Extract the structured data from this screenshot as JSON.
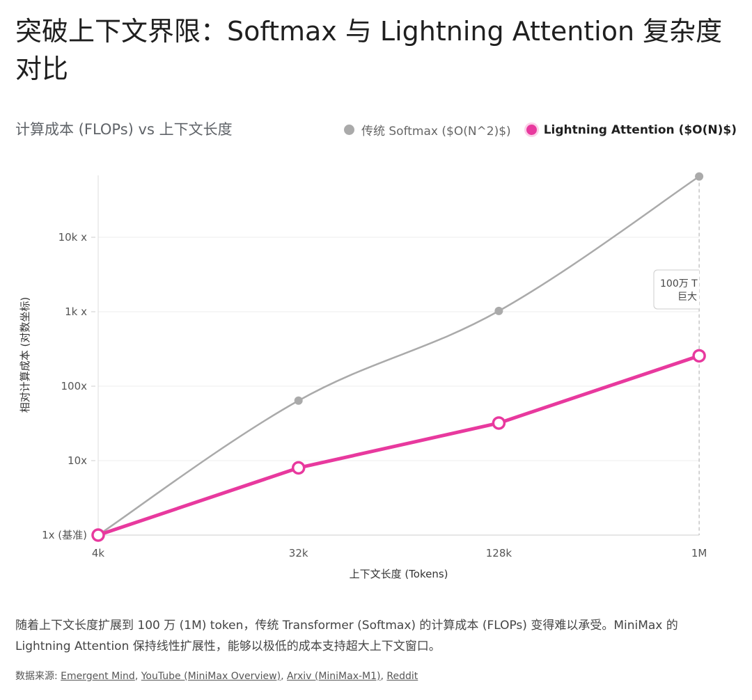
{
  "page": {
    "title": "突破上下文界限：Softmax 与 Lightning Attention 复杂度对比",
    "subtitle": "计算成本 (FLOPs) vs 上下文长度",
    "description": "随着上下文长度扩展到 100 万 (1M) token，传统 Transformer (Softmax) 的计算成本 (FLOPs) 变得难以承受。MiniMax 的 Lightning Attention 保持线性扩展性，能够以极低的成本支持超大上下文窗口。",
    "sources_label": "数据来源: ",
    "sources": [
      "Emergent Mind",
      "YouTube (MiniMax Overview)",
      "Arxiv (MiniMax-M1)",
      "Reddit"
    ]
  },
  "colors": {
    "softmax": "#aaaaaa",
    "lightning": "#e8399e",
    "grid": "#ececec"
  },
  "chart_data": {
    "type": "line",
    "title": "计算成本 (FLOPs) vs 上下文长度",
    "categories": [
      "4k",
      "32k",
      "128k",
      "1M"
    ],
    "xlabel": "上下文长度 (Tokens)",
    "ylabel": "相对计算成本 (对数坐标)",
    "yscale": "log",
    "ylim": [
      1,
      80000
    ],
    "yticks": [
      {
        "value": 1,
        "label": "1x (基准)"
      },
      {
        "value": 10,
        "label": "10x"
      },
      {
        "value": 100,
        "label": "100x"
      },
      {
        "value": 1000,
        "label": "1k x"
      },
      {
        "value": 10000,
        "label": "10k x"
      }
    ],
    "series": [
      {
        "name": "传统 Softmax ($O(N^2)$)",
        "values": [
          1,
          64,
          1024,
          65536
        ],
        "color": "#aaaaaa"
      },
      {
        "name": "Lightning Attention ($O(N)$)",
        "values": [
          1,
          8,
          32,
          256
        ],
        "color": "#e8399e"
      }
    ],
    "annotation": {
      "line1": "100万 T",
      "line2": "巨大",
      "category": "1M"
    },
    "legend": "top-right"
  }
}
